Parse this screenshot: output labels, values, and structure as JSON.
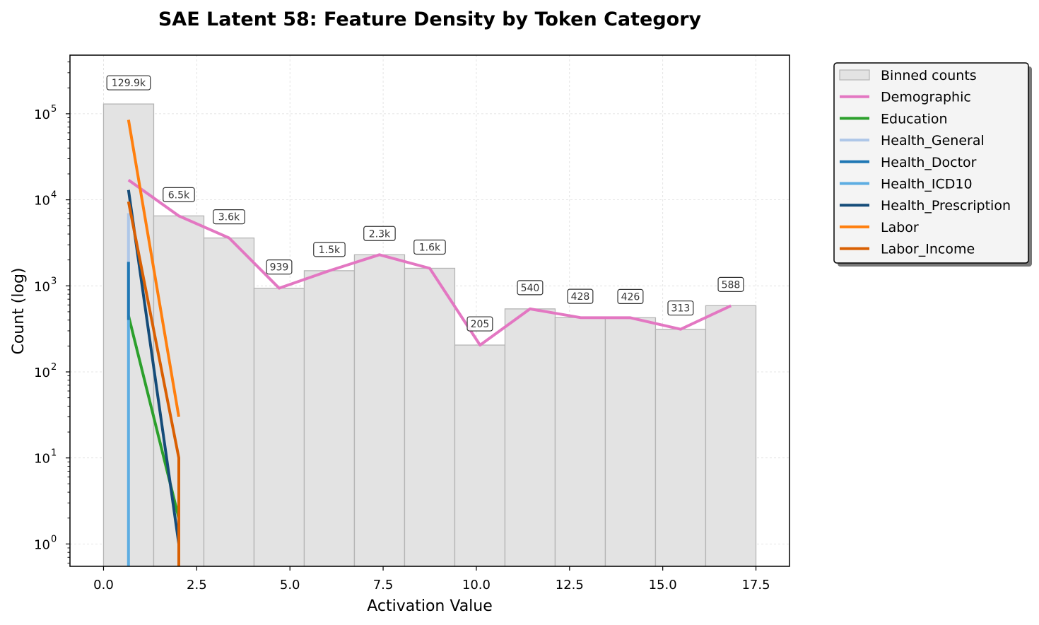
{
  "chart_data": {
    "type": "bar",
    "title": "SAE Latent 58: Feature Density by Token Category",
    "xlabel": "Activation Value",
    "ylabel": "Count (log)",
    "xlim": [
      -0.9,
      18.4
    ],
    "ylim": [
      0.55,
      480000
    ],
    "yscale": "log",
    "grid": true,
    "legend_position": "outside-right",
    "x_ticks": [
      "0.0",
      "2.5",
      "5.0",
      "7.5",
      "10.0",
      "12.5",
      "15.0",
      "17.5"
    ],
    "x_tick_values": [
      0,
      2.5,
      5,
      7.5,
      10,
      12.5,
      15,
      17.5
    ],
    "y_ticks": [
      {
        "value": 1,
        "base": "10",
        "exp": "0"
      },
      {
        "value": 10,
        "base": "10",
        "exp": "1"
      },
      {
        "value": 100,
        "base": "10",
        "exp": "2"
      },
      {
        "value": 1000,
        "base": "10",
        "exp": "3"
      },
      {
        "value": 10000,
        "base": "10",
        "exp": "4"
      },
      {
        "value": 100000,
        "base": "10",
        "exp": "5"
      }
    ],
    "bins": {
      "name": "Binned counts",
      "color": "#e3e3e3",
      "edge_color": "#b5b5b5",
      "edges": [
        0,
        1.346,
        2.692,
        4.038,
        5.384,
        6.73,
        8.076,
        9.422,
        10.768,
        12.114,
        13.46,
        14.806,
        16.152,
        17.5
      ],
      "counts": [
        129900,
        6500,
        3600,
        939,
        1500,
        2300,
        1600,
        205,
        540,
        428,
        426,
        313,
        588
      ],
      "labels": [
        "129.9k",
        "6.5k",
        "3.6k",
        "939",
        "1.5k",
        "2.3k",
        "1.6k",
        "205",
        "540",
        "428",
        "426",
        "313",
        "588"
      ]
    },
    "series": [
      {
        "name": "Demographic",
        "color": "#e377c2",
        "x": [
          0.67,
          2.02,
          3.37,
          4.71,
          6.06,
          7.4,
          8.75,
          10.1,
          11.44,
          12.79,
          14.13,
          15.48,
          16.83
        ],
        "y": [
          17000,
          6500,
          3600,
          939,
          1500,
          2300,
          1600,
          205,
          540,
          428,
          426,
          313,
          588
        ]
      },
      {
        "name": "Education",
        "color": "#2ca02c",
        "x": [
          0.67,
          2.02
        ],
        "y": [
          450,
          2
        ]
      },
      {
        "name": "Health_General",
        "color": "#aec7e8",
        "x": [
          0.67,
          0.67
        ],
        "y": [
          7000,
          400
        ]
      },
      {
        "name": "Health_Doctor",
        "color": "#1f77b4",
        "x": [
          0.67,
          0.67
        ],
        "y": [
          1900,
          400
        ]
      },
      {
        "name": "Health_ICD10",
        "color": "#5dade2",
        "x": [
          0.67,
          0.67
        ],
        "y": [
          400,
          0.55
        ]
      },
      {
        "name": "Health_Prescription",
        "color": "#154c79",
        "x": [
          0.67,
          2.02
        ],
        "y": [
          13000,
          1
        ]
      },
      {
        "name": "Labor",
        "color": "#ff7f0e",
        "x": [
          0.67,
          2.02
        ],
        "y": [
          85000,
          30
        ]
      },
      {
        "name": "Labor_Income",
        "color": "#d95f02",
        "x": [
          0.67,
          2.02,
          2.02
        ],
        "y": [
          9500,
          10,
          0.55
        ]
      }
    ]
  }
}
